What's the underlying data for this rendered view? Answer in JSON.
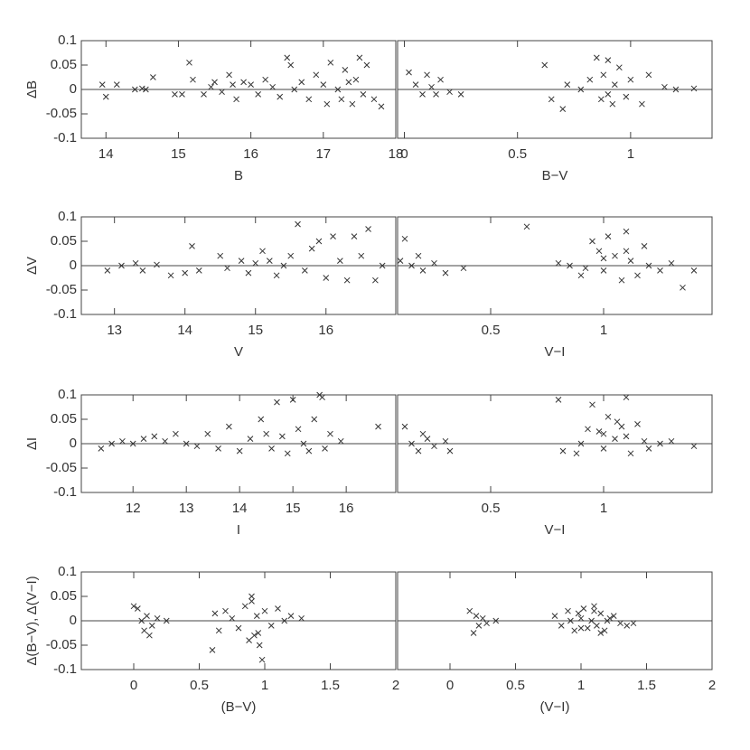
{
  "chart_data": [
    {
      "type": "scatter",
      "xlabel": "B",
      "ylabel": "ΔB",
      "xlim": [
        13.66,
        18
      ],
      "ylim": [
        -0.1,
        0.1
      ],
      "xticks": [
        14,
        15,
        16,
        17,
        18
      ],
      "yticks": [
        0.1,
        0.05,
        0,
        -0.05,
        -0.1
      ],
      "hline": 0,
      "x": [
        13.95,
        14.0,
        14.15,
        14.4,
        14.5,
        14.55,
        14.65,
        14.95,
        15.05,
        15.15,
        15.2,
        15.35,
        15.45,
        15.5,
        15.6,
        15.7,
        15.75,
        15.8,
        15.9,
        16.0,
        16.1,
        16.2,
        16.3,
        16.4,
        16.5,
        16.55,
        16.6,
        16.7,
        16.8,
        16.9,
        17.0,
        17.05,
        17.1,
        17.2,
        17.25,
        17.3,
        17.35,
        17.4,
        17.45,
        17.5,
        17.55,
        17.6,
        17.7,
        17.8
      ],
      "values": [
        0.01,
        -0.015,
        0.01,
        0,
        0.002,
        0,
        0.025,
        -0.01,
        -0.01,
        0.055,
        0.02,
        -0.01,
        0.005,
        0.015,
        -0.005,
        0.03,
        0.01,
        -0.02,
        0.015,
        0.01,
        -0.01,
        0.02,
        0.005,
        -0.015,
        0.065,
        0.05,
        0.0,
        0.015,
        -0.02,
        0.03,
        0.01,
        -0.03,
        0.055,
        0.0,
        -0.02,
        0.04,
        0.015,
        -0.03,
        0.02,
        0.065,
        -0.01,
        0.05,
        -0.02,
        -0.035
      ]
    },
    {
      "type": "scatter",
      "xlabel": "B−V",
      "xlim": [
        -0.03,
        1.36
      ],
      "ylim": [
        -0.1,
        0.1
      ],
      "xticks": [
        0,
        0.5,
        1
      ],
      "hline": 0,
      "x": [
        0.02,
        0.05,
        0.08,
        0.1,
        0.12,
        0.14,
        0.16,
        0.2,
        0.25,
        0.62,
        0.65,
        0.7,
        0.72,
        0.78,
        0.82,
        0.85,
        0.87,
        0.88,
        0.9,
        0.92,
        0.93,
        0.95,
        0.98,
        1.0,
        1.05,
        1.08,
        1.15,
        1.2,
        1.28,
        0.9
      ],
      "values": [
        0.035,
        0.01,
        -0.01,
        0.03,
        0.005,
        -0.01,
        0.02,
        -0.005,
        -0.01,
        0.05,
        -0.02,
        -0.04,
        0.01,
        0.0,
        0.02,
        0.065,
        -0.02,
        0.03,
        0.06,
        -0.03,
        0.01,
        0.045,
        -0.015,
        0.02,
        -0.03,
        0.03,
        0.005,
        0.0,
        0.002,
        -0.01
      ]
    },
    {
      "type": "scatter",
      "xlabel": "V",
      "ylabel": "ΔV",
      "xlim": [
        12.53,
        16.99
      ],
      "ylim": [
        -0.1,
        0.1
      ],
      "xticks": [
        13,
        14,
        15,
        16
      ],
      "yticks": [
        0.1,
        0.05,
        0,
        -0.05,
        -0.1
      ],
      "hline": 0,
      "x": [
        12.9,
        13.1,
        13.3,
        13.4,
        13.6,
        13.8,
        14.0,
        14.1,
        14.2,
        14.5,
        14.6,
        14.8,
        14.9,
        15.0,
        15.1,
        15.2,
        15.3,
        15.4,
        15.5,
        15.6,
        15.7,
        15.8,
        15.9,
        16.0,
        16.1,
        16.2,
        16.3,
        16.4,
        16.5,
        16.6,
        16.7,
        16.8
      ],
      "values": [
        -0.01,
        0.0,
        0.005,
        -0.01,
        0.002,
        -0.02,
        -0.015,
        0.04,
        -0.01,
        0.02,
        -0.005,
        0.01,
        -0.015,
        0.005,
        0.03,
        0.01,
        -0.02,
        0.0,
        0.02,
        0.085,
        -0.01,
        0.035,
        0.05,
        -0.025,
        0.06,
        0.01,
        -0.03,
        0.06,
        0.02,
        0.075,
        -0.03,
        0.0
      ]
    },
    {
      "type": "scatter",
      "xlabel": "V−I",
      "xlim": [
        0.088,
        1.48
      ],
      "ylim": [
        -0.1,
        0.1
      ],
      "xticks": [
        0.5,
        1
      ],
      "hline": 0,
      "x": [
        0.1,
        0.12,
        0.15,
        0.18,
        0.2,
        0.25,
        0.3,
        0.38,
        0.66,
        0.8,
        0.85,
        0.9,
        0.95,
        0.98,
        1.0,
        1.02,
        1.05,
        1.08,
        1.1,
        1.12,
        1.15,
        1.18,
        1.2,
        1.25,
        1.3,
        1.35,
        1.4,
        1.0,
        1.1,
        0.92
      ],
      "values": [
        0.01,
        0.055,
        0.0,
        0.02,
        -0.01,
        0.005,
        -0.015,
        -0.005,
        0.08,
        0.005,
        0.0,
        -0.02,
        0.05,
        0.03,
        -0.01,
        0.06,
        0.02,
        -0.03,
        0.07,
        0.01,
        -0.02,
        0.04,
        0.0,
        -0.01,
        0.005,
        -0.045,
        -0.01,
        0.015,
        0.03,
        -0.005
      ]
    },
    {
      "type": "scatter",
      "xlabel": "I",
      "ylabel": "ΔI",
      "xlim": [
        11.03,
        16.93
      ],
      "ylim": [
        -0.1,
        0.1
      ],
      "xticks": [
        12,
        13,
        14,
        15,
        16
      ],
      "yticks": [
        0.1,
        0.05,
        0,
        -0.05,
        -0.1
      ],
      "hline": 0,
      "x": [
        11.4,
        11.6,
        11.8,
        12.0,
        12.2,
        12.4,
        12.6,
        12.8,
        13.0,
        13.2,
        13.4,
        13.6,
        13.8,
        14.0,
        14.2,
        14.4,
        14.5,
        14.6,
        14.7,
        14.8,
        14.9,
        15.0,
        15.1,
        15.2,
        15.3,
        15.4,
        15.5,
        15.55,
        15.6,
        15.7,
        15.9,
        16.6
      ],
      "values": [
        -0.01,
        0.0,
        0.005,
        0.0,
        0.01,
        0.015,
        0.005,
        0.02,
        0.0,
        -0.005,
        0.02,
        -0.01,
        0.035,
        -0.015,
        0.01,
        0.05,
        0.02,
        -0.01,
        0.085,
        0.015,
        -0.02,
        0.09,
        0.03,
        0.0,
        -0.015,
        0.05,
        0.1,
        0.095,
        -0.01,
        0.02,
        0.005,
        0.035
      ]
    },
    {
      "type": "scatter",
      "xlabel": "V−I",
      "xlim": [
        0.088,
        1.48
      ],
      "ylim": [
        -0.1,
        0.1
      ],
      "xticks": [
        0.5,
        1
      ],
      "hline": 0,
      "x": [
        0.12,
        0.15,
        0.18,
        0.2,
        0.22,
        0.25,
        0.3,
        0.32,
        0.8,
        0.82,
        0.9,
        0.95,
        0.98,
        1.0,
        1.02,
        1.05,
        1.08,
        1.1,
        1.12,
        1.15,
        1.18,
        1.2,
        1.25,
        1.3,
        1.4,
        0.88,
        1.0,
        1.1,
        0.93,
        1.06
      ],
      "values": [
        0.035,
        0.0,
        -0.015,
        0.02,
        0.01,
        -0.005,
        0.005,
        -0.015,
        0.09,
        -0.015,
        0.0,
        0.08,
        0.025,
        -0.01,
        0.055,
        0.01,
        0.035,
        0.095,
        -0.02,
        0.04,
        0.005,
        -0.01,
        0.0,
        0.005,
        -0.005,
        -0.02,
        0.02,
        0.015,
        0.03,
        0.045
      ]
    },
    {
      "type": "scatter",
      "xlabel": "(B−V)",
      "ylabel": "Δ(B−V), Δ(V−I)",
      "xlim": [
        -0.4,
        2
      ],
      "ylim": [
        -0.1,
        0.1
      ],
      "xticks": [
        0,
        0.5,
        1,
        1.5,
        2
      ],
      "yticks": [
        0.1,
        0.05,
        0,
        -0.05,
        -0.1
      ],
      "hline": 0,
      "x": [
        0.0,
        0.03,
        0.06,
        0.08,
        0.1,
        0.12,
        0.14,
        0.18,
        0.25,
        0.6,
        0.62,
        0.65,
        0.7,
        0.75,
        0.8,
        0.85,
        0.88,
        0.9,
        0.92,
        0.94,
        0.96,
        0.98,
        1.0,
        1.05,
        1.1,
        1.15,
        1.2,
        1.28,
        0.9,
        0.95
      ],
      "values": [
        0.03,
        0.025,
        0.0,
        -0.02,
        0.01,
        -0.03,
        -0.01,
        0.005,
        0.0,
        -0.06,
        0.015,
        -0.02,
        0.02,
        0.005,
        -0.015,
        0.03,
        -0.04,
        0.05,
        -0.03,
        0.01,
        -0.05,
        -0.08,
        0.02,
        -0.01,
        0.025,
        0.0,
        0.01,
        0.005,
        0.04,
        -0.025
      ]
    },
    {
      "type": "scatter",
      "xlabel": "(V−I)",
      "xlim": [
        -0.4,
        2
      ],
      "ylim": [
        -0.1,
        0.1
      ],
      "xticks": [
        0,
        0.5,
        1,
        1.5,
        2
      ],
      "hline": 0,
      "x": [
        0.15,
        0.18,
        0.2,
        0.22,
        0.25,
        0.28,
        0.35,
        0.8,
        0.85,
        0.9,
        0.95,
        1.0,
        1.02,
        1.05,
        1.08,
        1.1,
        1.12,
        1.15,
        1.18,
        1.2,
        1.25,
        1.3,
        1.35,
        1.4,
        1.0,
        1.1,
        0.98,
        1.15,
        0.92,
        1.22
      ],
      "values": [
        0.02,
        -0.025,
        0.01,
        -0.01,
        0.005,
        -0.005,
        0.0,
        0.01,
        -0.01,
        0.02,
        -0.02,
        0.005,
        0.025,
        -0.015,
        0.0,
        0.03,
        -0.01,
        0.015,
        -0.02,
        0.0,
        0.01,
        -0.005,
        -0.01,
        -0.005,
        -0.015,
        0.02,
        0.015,
        -0.025,
        0.0,
        0.005
      ]
    }
  ]
}
